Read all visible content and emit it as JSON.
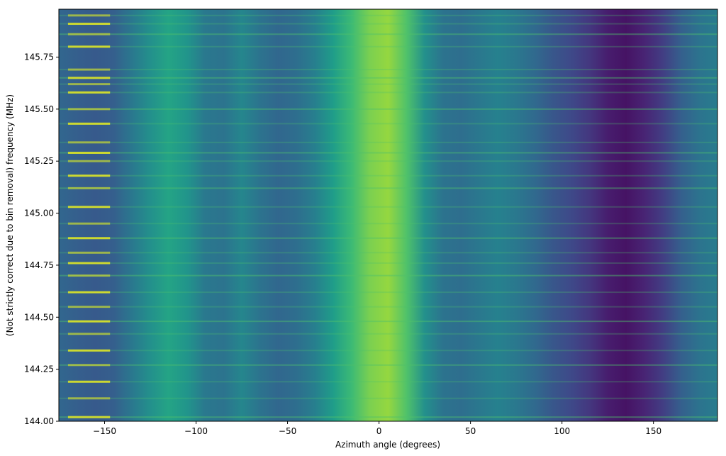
{
  "chart_data": {
    "type": "heatmap",
    "title": "",
    "xlabel": "Azimuth angle (degrees)",
    "ylabel": "(Not strictly correct due to bin removal) frequency (MHz)",
    "xlim": [
      -175,
      185
    ],
    "ylim": [
      144.0,
      145.98
    ],
    "xticks": [
      -150,
      -100,
      -50,
      0,
      50,
      100,
      150
    ],
    "xtick_labels": [
      "−150",
      "−100",
      "−50",
      "0",
      "50",
      "100",
      "150"
    ],
    "yticks": [
      144.0,
      144.25,
      144.5,
      144.75,
      145.0,
      145.25,
      145.5,
      145.75
    ],
    "ytick_labels": [
      "144.00",
      "144.25",
      "144.50",
      "144.75",
      "145.00",
      "145.25",
      "145.50",
      "145.75"
    ],
    "colormap": "viridis",
    "grid": false,
    "azimuth_profile": {
      "azimuth": [
        -175,
        -165,
        -155,
        -145,
        -135,
        -125,
        -115,
        -105,
        -95,
        -85,
        -75,
        -65,
        -55,
        -45,
        -35,
        -25,
        -15,
        -5,
        5,
        15,
        25,
        35,
        45,
        55,
        65,
        75,
        85,
        95,
        105,
        115,
        125,
        135,
        145,
        155,
        165,
        175,
        185
      ],
      "level": [
        0.33,
        0.3,
        0.28,
        0.3,
        0.4,
        0.5,
        0.58,
        0.52,
        0.4,
        0.38,
        0.46,
        0.38,
        0.33,
        0.36,
        0.43,
        0.55,
        0.68,
        0.8,
        0.84,
        0.72,
        0.5,
        0.38,
        0.36,
        0.4,
        0.44,
        0.4,
        0.34,
        0.27,
        0.22,
        0.16,
        0.08,
        0.05,
        0.1,
        0.18,
        0.3,
        0.38,
        0.42
      ]
    },
    "frequency_lines_mhz": [
      144.02,
      144.11,
      144.19,
      144.27,
      144.34,
      144.42,
      144.48,
      144.55,
      144.62,
      144.7,
      144.76,
      144.81,
      144.88,
      144.95,
      145.03,
      145.12,
      145.18,
      145.25,
      145.29,
      145.34,
      145.43,
      145.5,
      145.58,
      145.62,
      145.65,
      145.69,
      145.8,
      145.86,
      145.91,
      145.95
    ]
  }
}
